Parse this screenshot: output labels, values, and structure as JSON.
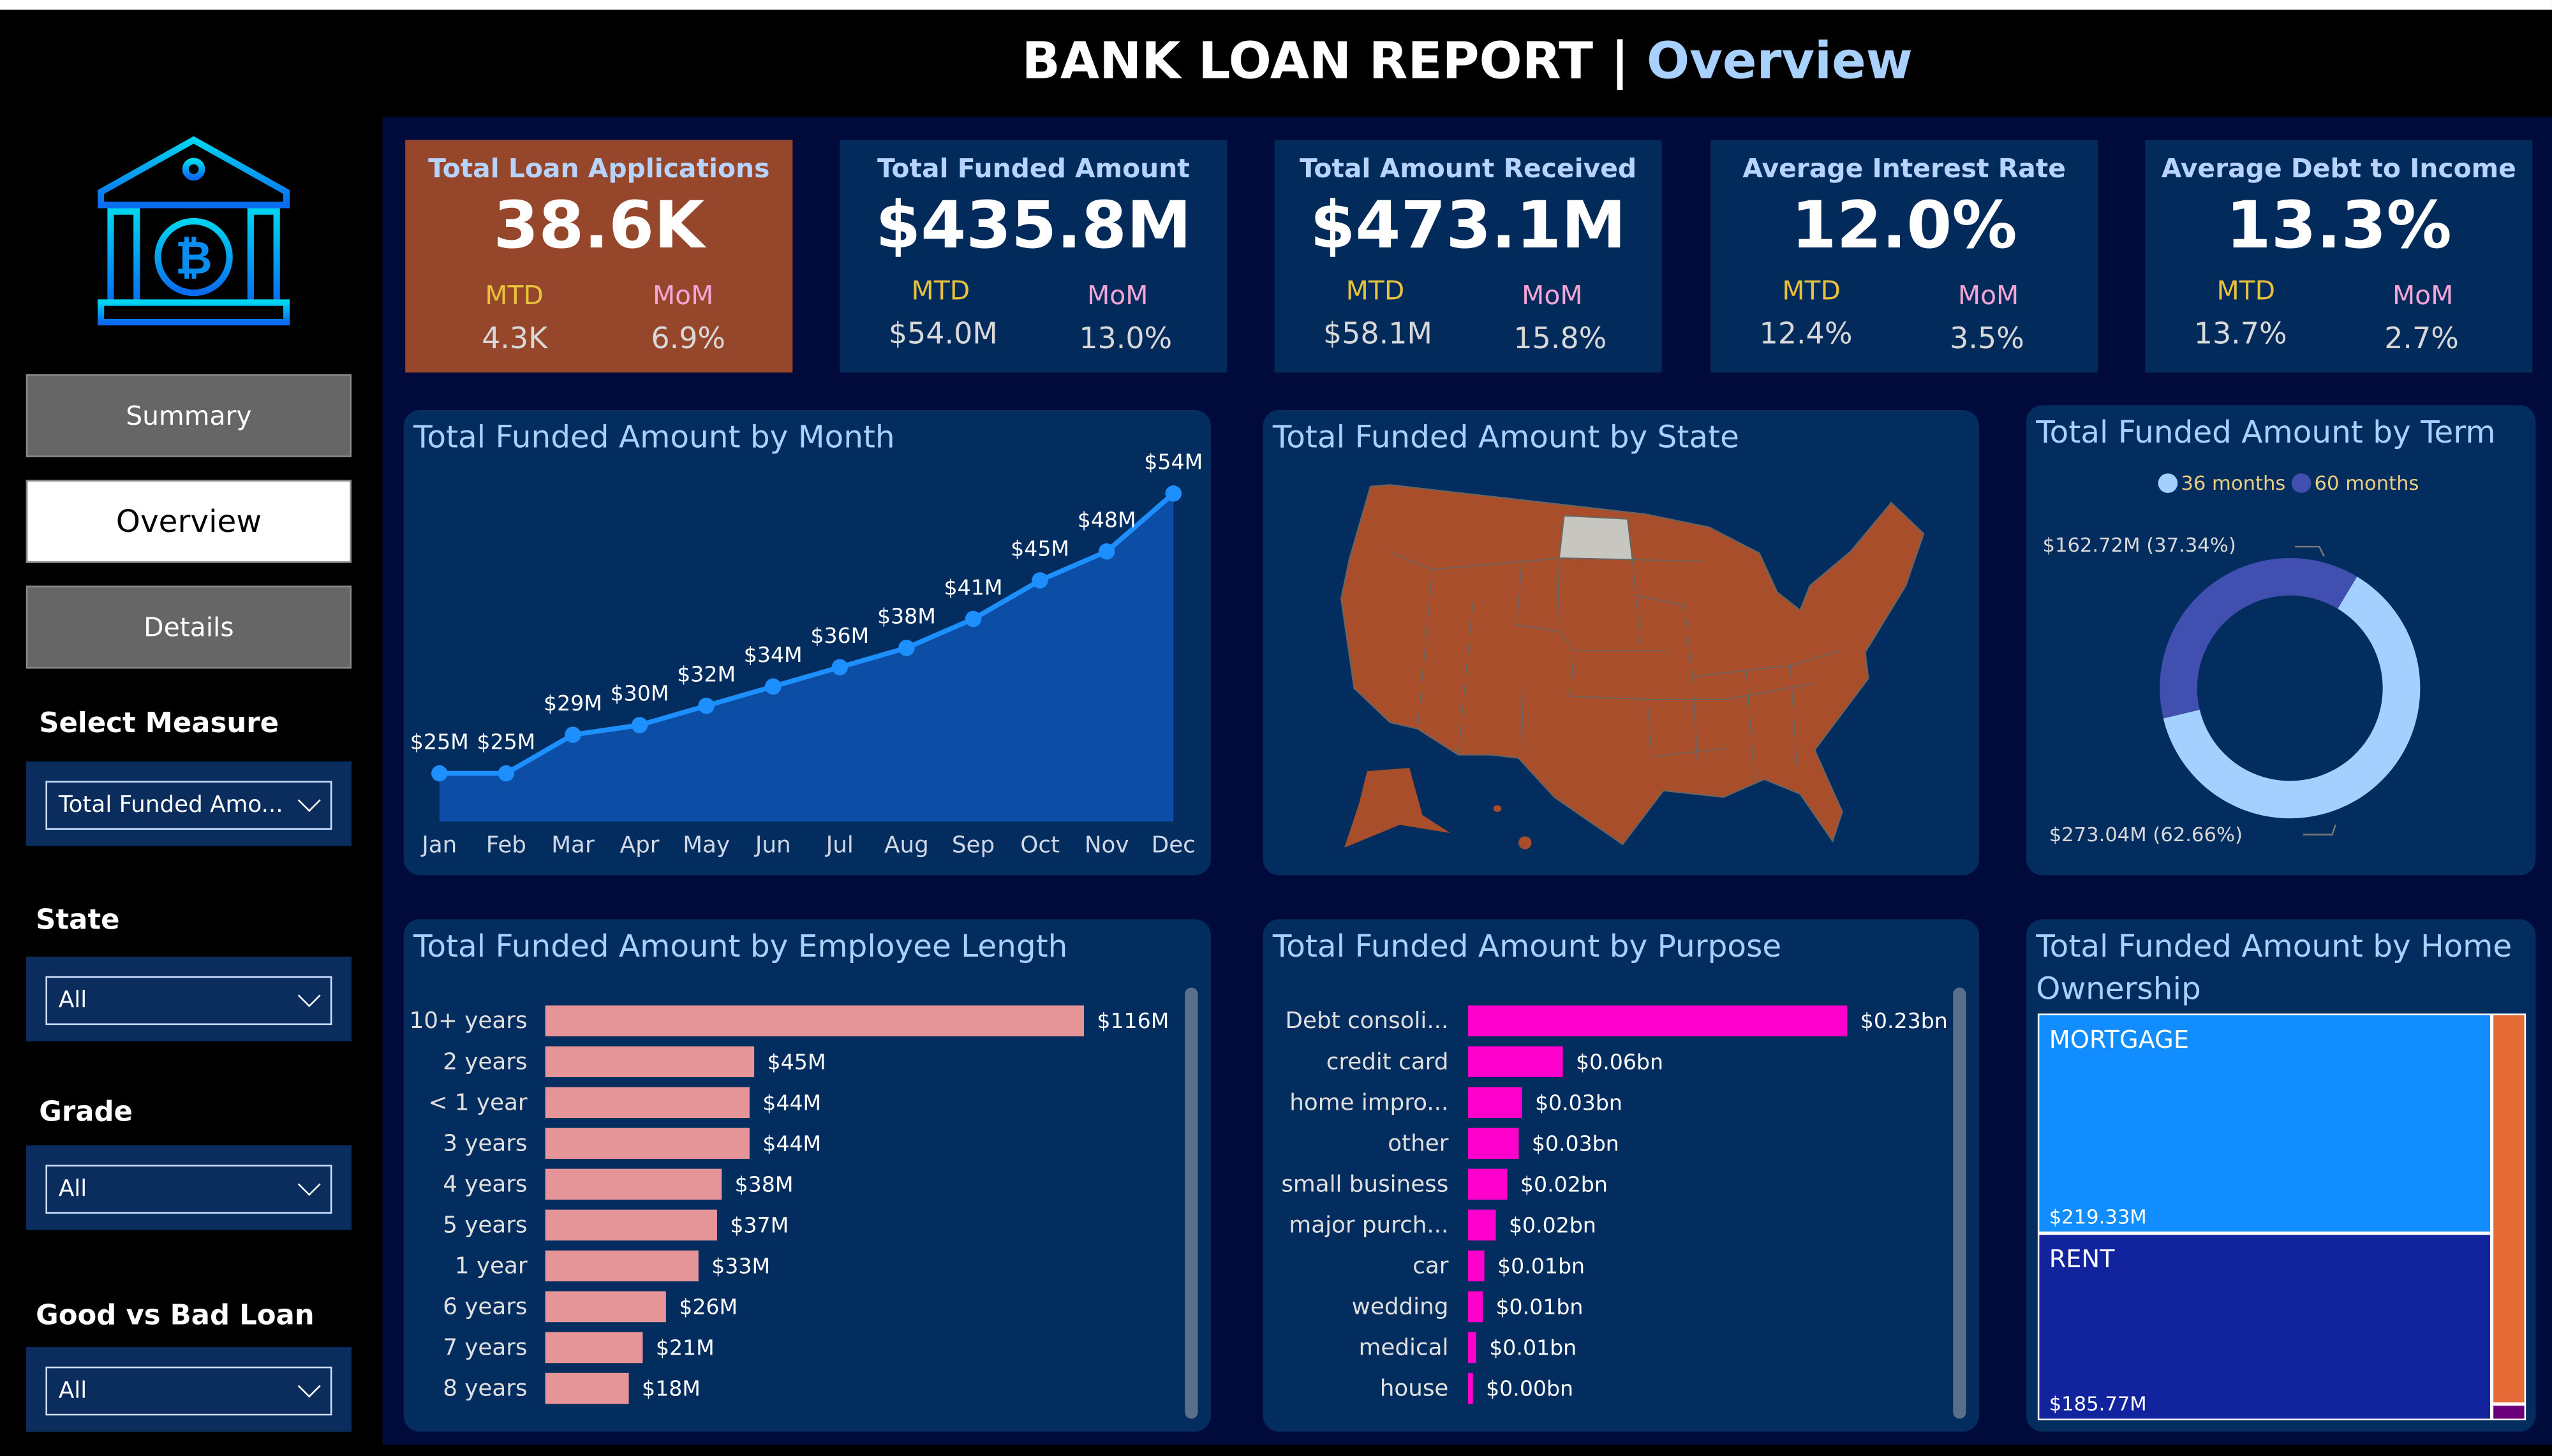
{
  "header": {
    "title": "BANK LOAN REPORT",
    "separator": "|",
    "subtitle": "Overview"
  },
  "sidebar": {
    "logo": "bank-bitcoin-logo",
    "nav": [
      {
        "label": "Summary",
        "active": false
      },
      {
        "label": "Overview",
        "active": true
      },
      {
        "label": "Details",
        "active": false
      }
    ],
    "slicers": [
      {
        "label": "Select Measure",
        "value": "Total Funded Amo..."
      },
      {
        "label": "State",
        "value": "All"
      },
      {
        "label": "Grade",
        "value": "All"
      },
      {
        "label": "Good vs Bad Loan",
        "value": "All"
      }
    ]
  },
  "kpis": [
    {
      "title": "Total Loan Applications",
      "value": "38.6K",
      "mtd_label": "MTD",
      "mom_label": "MoM",
      "mtd": "4.3K",
      "mom": "6.9%",
      "bg": "#96472b"
    },
    {
      "title": "Total Funded Amount",
      "value": "$435.8M",
      "mtd_label": "MTD",
      "mom_label": "MoM",
      "mtd": "$54.0M",
      "mom": "13.0%",
      "bg": "#022b5c"
    },
    {
      "title": "Total Amount Received",
      "value": "$473.1M",
      "mtd_label": "MTD",
      "mom_label": "MoM",
      "mtd": "$58.1M",
      "mom": "15.8%",
      "bg": "#022b5c"
    },
    {
      "title": "Average Interest Rate",
      "value": "12.0%",
      "mtd_label": "MTD",
      "mom_label": "MoM",
      "mtd": "12.4%",
      "mom": "3.5%",
      "bg": "#022b5c"
    },
    {
      "title": "Average Debt to Income",
      "value": "13.3%",
      "mtd_label": "MTD",
      "mom_label": "MoM",
      "mtd": "13.7%",
      "mom": "2.7%",
      "bg": "#022b5c"
    }
  ],
  "chart_data": [
    {
      "type": "area",
      "title": "Total Funded Amount by Month",
      "categories": [
        "Jan",
        "Feb",
        "Mar",
        "Apr",
        "May",
        "Jun",
        "Jul",
        "Aug",
        "Sep",
        "Oct",
        "Nov",
        "Dec"
      ],
      "values": [
        25,
        25,
        29,
        30,
        32,
        34,
        36,
        38,
        41,
        45,
        48,
        54
      ],
      "labels": [
        "$25M",
        "$25M",
        "$29M",
        "$30M",
        "$32M",
        "$34M",
        "$36M",
        "$38M",
        "$41M",
        "$45M",
        "$48M",
        "$54M"
      ],
      "colors": {
        "line": "#1e8fff",
        "fill": "#0c4ea6"
      }
    },
    {
      "type": "map",
      "title": "Total Funded Amount by State",
      "colors": {
        "states": "#a84e2a",
        "highlight": "#c8c6c0"
      }
    },
    {
      "type": "donut",
      "title": "Total Funded Amount by Term",
      "series": [
        {
          "name": "36 months",
          "value": 273.04,
          "label": "$273.04M (62.66%)",
          "color": "#a3d0ff"
        },
        {
          "name": "60 months",
          "value": 162.72,
          "label": "$162.72M (37.34%)",
          "color": "#4150b0"
        }
      ],
      "legend": "top"
    },
    {
      "type": "bar",
      "orientation": "horizontal",
      "title": "Total Funded Amount by Employee Length",
      "categories": [
        "10+ years",
        "2 years",
        "< 1 year",
        "3 years",
        "4 years",
        "5 years",
        "1 year",
        "6 years",
        "7 years",
        "8 years"
      ],
      "values": [
        116,
        45,
        44,
        44,
        38,
        37,
        33,
        26,
        21,
        18
      ],
      "labels": [
        "$116M",
        "$45M",
        "$44M",
        "$44M",
        "$38M",
        "$37M",
        "$33M",
        "$26M",
        "$21M",
        "$18M"
      ],
      "color": "#e59597"
    },
    {
      "type": "bar",
      "orientation": "horizontal",
      "title": "Total Funded Amount by Purpose",
      "categories": [
        "Debt consoli...",
        "credit card",
        "home impro...",
        "other",
        "small business",
        "major purch...",
        "car",
        "wedding",
        "medical",
        "house"
      ],
      "values": [
        0.232,
        0.058,
        0.033,
        0.031,
        0.024,
        0.017,
        0.01,
        0.009,
        0.005,
        0.003
      ],
      "labels": [
        "$0.23bn",
        "$0.06bn",
        "$0.03bn",
        "$0.03bn",
        "$0.02bn",
        "$0.02bn",
        "$0.01bn",
        "$0.01bn",
        "$0.01bn",
        "$0.00bn"
      ],
      "color": "#ff00cc"
    },
    {
      "type": "treemap",
      "title": "Total Funded Amount by Home Ownership",
      "items": [
        {
          "name": "MORTGAGE",
          "value": 219.33,
          "label": "$219.33M",
          "color": "#118dff"
        },
        {
          "name": "RENT",
          "value": 185.77,
          "label": "$185.77M",
          "color": "#12239e"
        },
        {
          "name": "",
          "value": 29.0,
          "label": "",
          "color": "#e66c37"
        },
        {
          "name": "",
          "value": 1.2,
          "label": "",
          "color": "#6b007b"
        }
      ]
    }
  ]
}
